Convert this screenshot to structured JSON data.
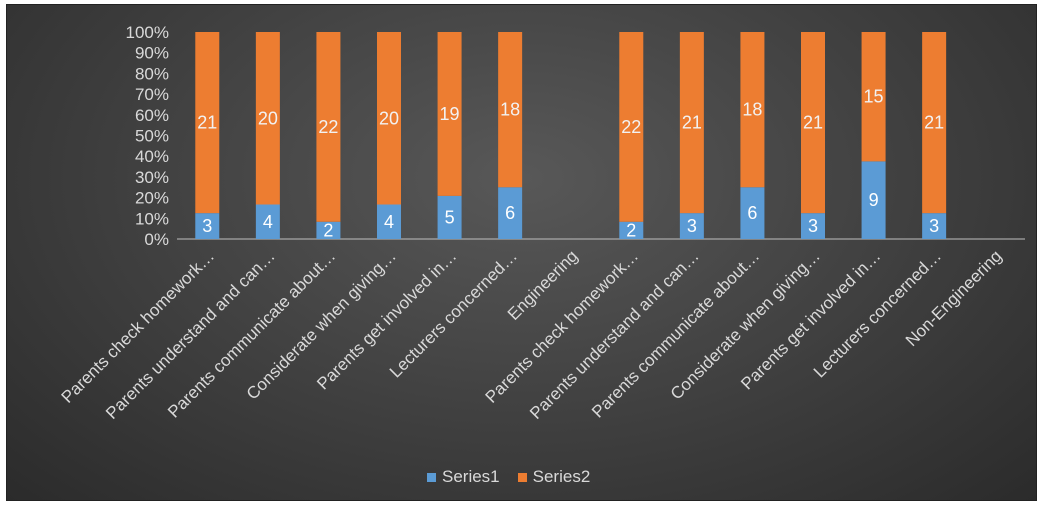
{
  "chart_data": {
    "type": "bar",
    "stacked": "percent",
    "categories": [
      "Parents check homework…",
      "Parents understand and can…",
      "Parents communicate about…",
      "Considerate when giving…",
      "Parents get involved in…",
      "Lecturers concerned…",
      "Engineering",
      "Parents check homework…",
      "Parents understand and can…",
      "Parents communicate about…",
      "Considerate when giving…",
      "Parents get involved in…",
      "Lecturers concerned…",
      "Non-Engineering"
    ],
    "series": [
      {
        "name": "Series1",
        "color": "#5b9bd5",
        "values": [
          3,
          4,
          2,
          4,
          5,
          6,
          null,
          2,
          3,
          6,
          3,
          9,
          3,
          null
        ]
      },
      {
        "name": "Series2",
        "color": "#ed7d31",
        "values": [
          21,
          20,
          22,
          20,
          19,
          18,
          null,
          22,
          21,
          18,
          21,
          15,
          21,
          null
        ]
      }
    ],
    "yticks": [
      "0%",
      "10%",
      "20%",
      "30%",
      "40%",
      "50%",
      "60%",
      "70%",
      "80%",
      "90%",
      "100%"
    ],
    "ylim": [
      0,
      1
    ],
    "legend_position": "bottom",
    "grid": false
  }
}
